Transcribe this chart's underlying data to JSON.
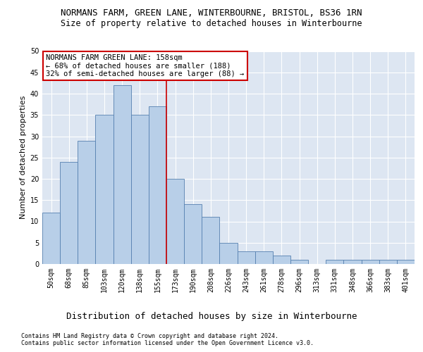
{
  "title": "NORMANS FARM, GREEN LANE, WINTERBOURNE, BRISTOL, BS36 1RN",
  "subtitle": "Size of property relative to detached houses in Winterbourne",
  "xlabel": "Distribution of detached houses by size in Winterbourne",
  "ylabel": "Number of detached properties",
  "categories": [
    "50sqm",
    "68sqm",
    "85sqm",
    "103sqm",
    "120sqm",
    "138sqm",
    "155sqm",
    "173sqm",
    "190sqm",
    "208sqm",
    "226sqm",
    "243sqm",
    "261sqm",
    "278sqm",
    "296sqm",
    "313sqm",
    "331sqm",
    "348sqm",
    "366sqm",
    "383sqm",
    "401sqm"
  ],
  "values": [
    12,
    24,
    29,
    35,
    42,
    35,
    37,
    20,
    14,
    11,
    5,
    3,
    3,
    2,
    1,
    0,
    1,
    1,
    1,
    1,
    1
  ],
  "bar_color": "#b8cfe8",
  "bar_edge_color": "#5580b0",
  "vline_x_pos": 6.5,
  "vline_color": "#cc0000",
  "annotation_line1": "NORMANS FARM GREEN LANE: 158sqm",
  "annotation_line2": "← 68% of detached houses are smaller (188)",
  "annotation_line3": "32% of semi-detached houses are larger (88) →",
  "annotation_box_facecolor": "#ffffff",
  "annotation_box_edgecolor": "#cc0000",
  "ylim": [
    0,
    50
  ],
  "yticks": [
    0,
    5,
    10,
    15,
    20,
    25,
    30,
    35,
    40,
    45,
    50
  ],
  "plot_bg_color": "#dde6f2",
  "fig_bg_color": "#ffffff",
  "title_fontsize": 9,
  "subtitle_fontsize": 8.5,
  "ylabel_fontsize": 8,
  "xlabel_fontsize": 9,
  "tick_fontsize": 7,
  "annot_fontsize": 7.5,
  "footer_line1": "Contains HM Land Registry data © Crown copyright and database right 2024.",
  "footer_line2": "Contains public sector information licensed under the Open Government Licence v3.0.",
  "footer_fontsize": 6
}
